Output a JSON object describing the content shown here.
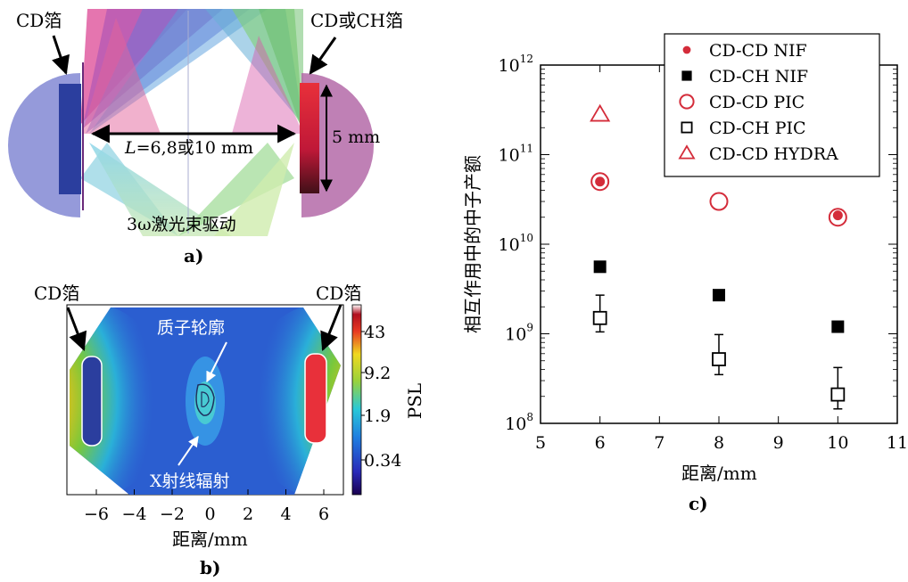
{
  "panel_a": {
    "label": "a)",
    "left_foil": "CD箔",
    "right_foil": "CD或CH箔",
    "distance_prefix": "L",
    "distance_text": "=6,8或10 mm",
    "size_text": "5 mm",
    "laser_text": "3ω激光束驱动",
    "colors": {
      "hemisphere": "#8a8fd6",
      "foil_left": "#2b3e9e",
      "foil_right": "#d0203a"
    }
  },
  "panel_b": {
    "label": "b)",
    "left_foil": "CD箔",
    "right_foil": "CD箔",
    "proton_text": "质子轮廓",
    "xray_text": "X射线辐射",
    "xlabel": "距离/mm",
    "x_ticks": [
      "−6",
      "−4",
      "−2",
      "0",
      "2",
      "4",
      "6"
    ],
    "colorbar": {
      "label": "PSL",
      "ticks": [
        "43",
        "9.2",
        "1.9",
        "0.34"
      ]
    }
  },
  "chart_data": {
    "type": "scatter",
    "label": "c)",
    "xlabel": "距离/mm",
    "ylabel": "相互作用中的中子产额",
    "xlim": [
      5,
      11
    ],
    "y_scale": "log",
    "ylim": [
      100000000.0,
      1000000000000.0
    ],
    "x_ticks": [
      "5",
      "6",
      "7",
      "8",
      "9",
      "10",
      "11"
    ],
    "y_ticks": [
      {
        "value": 100000000.0,
        "base": "10",
        "exp": "8"
      },
      {
        "value": 1000000000.0,
        "base": "10",
        "exp": "9"
      },
      {
        "value": 10000000000.0,
        "base": "10",
        "exp": "10"
      },
      {
        "value": 100000000000.0,
        "base": "10",
        "exp": "11"
      },
      {
        "value": 1000000000000.0,
        "base": "10",
        "exp": "12"
      }
    ],
    "legend_position": "top-right",
    "series": [
      {
        "name": "CD-CD NIF",
        "marker": "filled-circle",
        "color": "#d42c3a",
        "points": [
          {
            "x": 6,
            "y": 50000000000.0
          },
          {
            "x": 10,
            "y": 21000000000.0
          }
        ]
      },
      {
        "name": "CD-CH NIF",
        "marker": "filled-square",
        "color": "#000000",
        "points": [
          {
            "x": 6,
            "y": 5600000000.0
          },
          {
            "x": 8,
            "y": 2700000000.0
          },
          {
            "x": 10,
            "y": 1200000000.0
          }
        ]
      },
      {
        "name": "CD-CD PIC",
        "marker": "open-circle",
        "color": "#d42c3a",
        "points": [
          {
            "x": 6,
            "y": 50000000000.0
          },
          {
            "x": 8,
            "y": 30000000000.0
          },
          {
            "x": 10,
            "y": 20000000000.0
          }
        ]
      },
      {
        "name": "CD-CH PIC",
        "marker": "open-square",
        "color": "#000000",
        "points": [
          {
            "x": 6,
            "y": 1500000000.0,
            "ylo": 1050000000.0,
            "yhi": 2700000000.0
          },
          {
            "x": 8,
            "y": 520000000.0,
            "ylo": 350000000.0,
            "yhi": 980000000.0
          },
          {
            "x": 10,
            "y": 210000000.0,
            "ylo": 145000000.0,
            "yhi": 420000000.0
          }
        ]
      },
      {
        "name": "CD-CD HYDRA",
        "marker": "open-triangle",
        "color": "#d42c3a",
        "points": [
          {
            "x": 6,
            "y": 280000000000.0
          }
        ]
      }
    ]
  }
}
